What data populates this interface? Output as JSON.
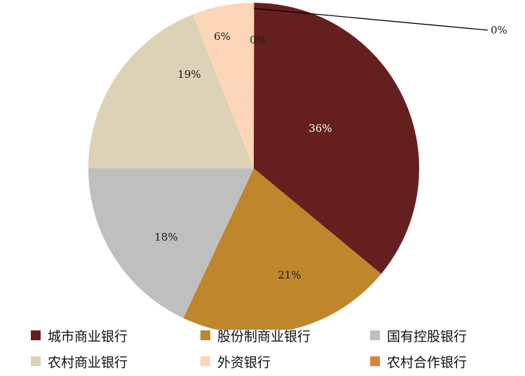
{
  "chart_data": {
    "type": "pie",
    "categories": [
      "城市商业银行",
      "股份制商业银行",
      "国有控股银行",
      "农村商业银行",
      "外资银行",
      "农村合作银行"
    ],
    "values": [
      36,
      21,
      18,
      19,
      6,
      0
    ],
    "data_labels": [
      "36%",
      "21%",
      "18%",
      "19%",
      "6%",
      "0%"
    ],
    "extra_label": "0%",
    "colors": [
      "#661f1f",
      "#c0862c",
      "#bfbfbf",
      "#ddd2b5",
      "#fcd6b8",
      "#d9853b"
    ],
    "legend_position": "bottom",
    "start_angle": "12 o'clock",
    "direction": "clockwise"
  }
}
